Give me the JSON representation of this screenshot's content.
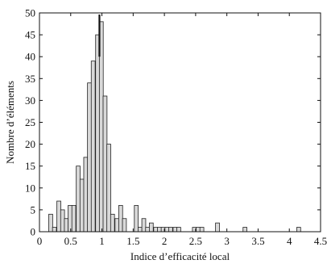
{
  "chart_data": {
    "type": "bar",
    "title": "",
    "xlabel": "Indice d’efficacité local",
    "ylabel": "Nombre d’éléments",
    "xlim": [
      0,
      4.5
    ],
    "ylim": [
      0,
      50
    ],
    "xticks": [
      "0",
      "0.5",
      "1",
      "1.5",
      "2",
      "2.5",
      "3",
      "3.5",
      "4",
      "4.5"
    ],
    "yticks": [
      "0",
      "5",
      "10",
      "15",
      "20",
      "25",
      "30",
      "35",
      "40",
      "45",
      "50"
    ],
    "bin_width": 0.0625,
    "x": [
      0.18,
      0.24,
      0.31,
      0.37,
      0.43,
      0.49,
      0.55,
      0.62,
      0.68,
      0.74,
      0.8,
      0.86,
      0.93,
      0.99,
      1.05,
      1.11,
      1.17,
      1.24,
      1.3,
      1.36,
      1.42,
      1.48,
      1.55,
      1.61,
      1.67,
      1.73,
      1.79,
      1.86,
      1.92,
      1.98,
      2.04,
      2.1,
      2.17,
      2.23,
      2.48,
      2.54,
      2.6,
      2.85,
      3.29,
      4.15
    ],
    "values": [
      4,
      1,
      7,
      5,
      3,
      6,
      6,
      15,
      12,
      17,
      34,
      39,
      45,
      48,
      31,
      20,
      4,
      3,
      6,
      3,
      0,
      0,
      6,
      1,
      3,
      1,
      2,
      1,
      1,
      1,
      1,
      1,
      1,
      1,
      1,
      1,
      1,
      2,
      1,
      1
    ],
    "peak_marker_x": 0.96,
    "bar_color": "#d9d9d9",
    "edge_color": "#222222",
    "grid": false,
    "legend": "none"
  }
}
